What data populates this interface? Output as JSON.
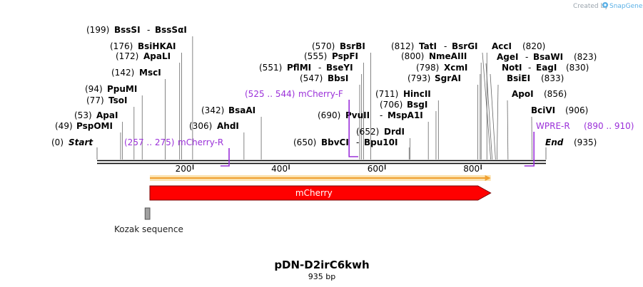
{
  "credit": {
    "prefix": "Created by",
    "brand": "SnapGene"
  },
  "plasmid": {
    "name": "pDN-D2irC6kwh",
    "length_label": "935 bp",
    "length": 935
  },
  "ends": {
    "start": {
      "pos": "(0)",
      "name": "Start"
    },
    "end": {
      "pos": "(935)",
      "name": "End"
    }
  },
  "ticks": [
    "200",
    "400",
    "600",
    "800"
  ],
  "tick_values": [
    200,
    400,
    600,
    800
  ],
  "sites": [
    {
      "group": [
        "(49)",
        "PspOMI"
      ],
      "bp": 49
    },
    {
      "group": [
        "(53)",
        "ApaI"
      ],
      "bp": 53
    },
    {
      "group": [
        "(77)",
        "TsoI"
      ],
      "bp": 77
    },
    {
      "group": [
        "(94)",
        "PpuMI"
      ],
      "bp": 94
    },
    {
      "group": [
        "(142)",
        "MscI"
      ],
      "bp": 142
    },
    {
      "group": [
        "(172)",
        "ApaLI"
      ],
      "bp": 172
    },
    {
      "group": [
        "(176)",
        "BsiHKAI"
      ],
      "bp": 176
    },
    {
      "group": [
        "(199)",
        "BssSI",
        "-",
        "BssSαI"
      ],
      "bp": 199
    },
    {
      "group": [
        "(306)",
        "AhdI"
      ],
      "bp": 306
    },
    {
      "group": [
        "(342)",
        "BsaAI"
      ],
      "bp": 342
    },
    {
      "group": [
        "(547)",
        "BbsI"
      ],
      "bp": 547
    },
    {
      "group": [
        "(551)",
        "PflMI",
        "-",
        "BseYI"
      ],
      "bp": 551
    },
    {
      "group": [
        "(555)",
        "PspFI"
      ],
      "bp": 555
    },
    {
      "group": [
        "(570)",
        "BsrBI"
      ],
      "bp": 570
    },
    {
      "group": [
        "(650)",
        "BbvCI",
        "-",
        "Bpu10I"
      ],
      "bp": 650
    },
    {
      "group": [
        "(652)",
        "DrdI"
      ],
      "bp": 652
    },
    {
      "group": [
        "(690)",
        "PvuII",
        "-",
        "MspA1I"
      ],
      "bp": 690
    },
    {
      "group": [
        "(706)",
        "BsgI"
      ],
      "bp": 706
    },
    {
      "group": [
        "(711)",
        "HincII"
      ],
      "bp": 711
    },
    {
      "group": [
        "(793)",
        "SgrAI"
      ],
      "bp": 793
    },
    {
      "group": [
        "(798)",
        "XcmI"
      ],
      "bp": 798
    },
    {
      "group": [
        "(800)",
        "NmeAIII"
      ],
      "bp": 800
    },
    {
      "group": [
        "(812)",
        "TatI",
        "-",
        "BsrGI"
      ],
      "bp": 812
    },
    {
      "group": [
        "AccI",
        "(820)"
      ],
      "bp": 820
    },
    {
      "group": [
        "AgeI",
        "-",
        "BsaWI",
        "(823)"
      ],
      "bp": 823
    },
    {
      "group": [
        "NotI",
        "-",
        "EagI",
        "(830)"
      ],
      "bp": 830
    },
    {
      "group": [
        "BsiEI",
        "(833)"
      ],
      "bp": 833
    },
    {
      "group": [
        "ApoI",
        "(856)"
      ],
      "bp": 856
    },
    {
      "group": [
        "BciVI",
        "(906)"
      ],
      "bp": 906
    }
  ],
  "primers": [
    {
      "range": "(257 .. 275)",
      "name": "mCherry-R",
      "bp_start": 257,
      "bp_end": 275,
      "direction": "reverse"
    },
    {
      "range": "(525 .. 544)",
      "name": "mCherry-F",
      "bp_start": 525,
      "bp_end": 544,
      "direction": "forward"
    },
    {
      "name": "WPRE-R",
      "range": "(890 .. 910)",
      "bp_start": 890,
      "bp_end": 910,
      "direction": "reverse"
    }
  ],
  "features": {
    "orf": {
      "bp_start": 110,
      "bp_end": 820
    },
    "mcherry": {
      "label": "mCherry",
      "bp_start": 110,
      "bp_end": 820,
      "color": "#ff0000"
    },
    "kozak": {
      "label": "Kozak sequence",
      "bp_start": 100,
      "bp_end": 110,
      "color": "#a0a0a0"
    }
  },
  "colors": {
    "primer": "#9b30d9",
    "orf": "#f0a030",
    "credit": "#9aa4ad",
    "brand": "#5ab0e6"
  }
}
